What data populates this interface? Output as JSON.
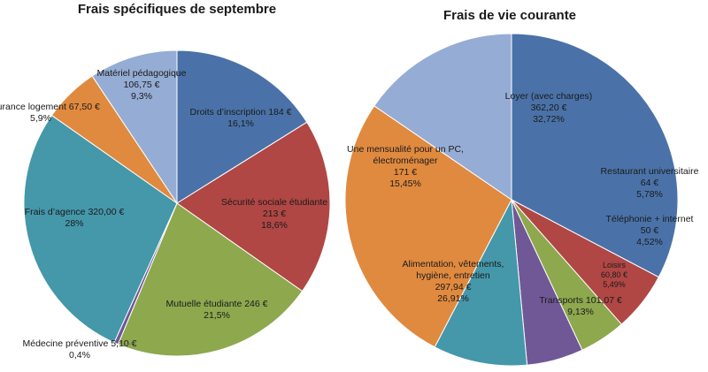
{
  "chart_data": [
    {
      "type": "pie",
      "title": "Frais spécifiques de septembre",
      "slices": [
        {
          "label": "Droits d’inscription",
          "value": 184,
          "value_text": "184 €",
          "percent": "16,1%",
          "color": "#4a72a8"
        },
        {
          "label": "Sécurité sociale étudiante",
          "value": 213,
          "value_text": "213 €",
          "percent": "18,6%",
          "color": "#b04745"
        },
        {
          "label": "Mutuelle étudiante",
          "value": 246,
          "value_text": "246 €",
          "percent": "21,5%",
          "color": "#8ea84e"
        },
        {
          "label": "Médecine préventive",
          "value": 5.1,
          "value_text": "5,10 €",
          "percent": "0,4%",
          "color": "#705896"
        },
        {
          "label": "Frais d’agence",
          "value": 320.0,
          "value_text": "320,00 €",
          "percent": "28%",
          "color": "#4597aa"
        },
        {
          "label": "Assurance logement",
          "value": 67.5,
          "value_text": "67,50 €",
          "percent": "5,9%",
          "color": "#e08a3f"
        },
        {
          "label": "Matériel pédagogique",
          "value": 106.75,
          "value_text": "106,75 €",
          "percent": "9,3%",
          "color": "#95acd5"
        }
      ]
    },
    {
      "type": "pie",
      "title": "Frais de vie courante",
      "slices": [
        {
          "label": "Loyer (avec charges)",
          "value": 362.2,
          "value_text": "362,20 €",
          "percent": "32,72%",
          "color": "#4a72a8"
        },
        {
          "label": "Restaurant universitaire",
          "value": 64,
          "value_text": "64 €",
          "percent": "5,78%",
          "color": "#b04745"
        },
        {
          "label": "Téléphonie + internet",
          "value": 50,
          "value_text": "50 €",
          "percent": "4,52%",
          "color": "#8ea84e"
        },
        {
          "label": "Loisirs",
          "value": 60.8,
          "value_text": "60,80 €",
          "percent": "5,49%",
          "color": "#705896"
        },
        {
          "label": "Transports",
          "value": 101.07,
          "value_text": "101,07 €",
          "percent": "9,13%",
          "color": "#4597aa"
        },
        {
          "label": "Alimentation, vêtements, hygiène, entretien",
          "value": 297.94,
          "value_text": "297,94 €",
          "percent": "26,91%",
          "color": "#e08a3f"
        },
        {
          "label": "Une mensualité pour un PC, électroménager",
          "value": 171,
          "value_text": "171 €",
          "percent": "15,45%",
          "color": "#95acd5"
        }
      ]
    }
  ]
}
